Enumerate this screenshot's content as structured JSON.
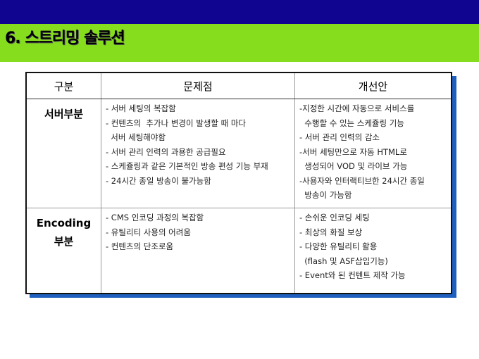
{
  "title": "6. 스트리밍 솔루션",
  "table": {
    "headers": [
      "구분",
      "문제점",
      "개선안"
    ],
    "rows": [
      {
        "category": [
          "서버부분"
        ],
        "problems": [
          "- 서버 세팅의 복잡함",
          "- 컨텐츠의  추가나 변경이 발생할 때 마다",
          "  서버 세팅해야함",
          "- 서버 관리 인력의 과용한 공급필요",
          "- 스케쥴링과 같은 기본적인 방송 편성 기능 부재",
          "- 24시간 종일 방송이 불가능함"
        ],
        "improvements": [
          "-지정한 시간에 자동으로 서비스를",
          "  수행할 수 있는 스케쥴링 기능",
          "- 서버 관리 인력의 감소",
          "-서버 세팅만으로 자동 HTML로",
          "  생성되어 VOD 및 라이브 가능",
          "-사용자와 인터랙티브한 24시간 종일",
          "  방송이 가능함"
        ]
      },
      {
        "category": [
          "Encoding",
          "부분"
        ],
        "problems": [
          "- CMS 인코딩 과정의 복잡함",
          "- 유틸리티 사용의 어려움",
          "- 컨텐츠의 단조로움"
        ],
        "improvements": [
          "- 손쉬운 인코딩 세팅",
          "- 최상의 화질 보상",
          "- 다양한 유틸리티 활용",
          "  (flash 및 ASF삽입기능)",
          "- Event와 된 컨텐트 제작 가능"
        ]
      }
    ]
  },
  "colors": {
    "top_bar": "#0f0590",
    "title_bar": "#86dd1e",
    "shadow": "#1f5fbf"
  }
}
